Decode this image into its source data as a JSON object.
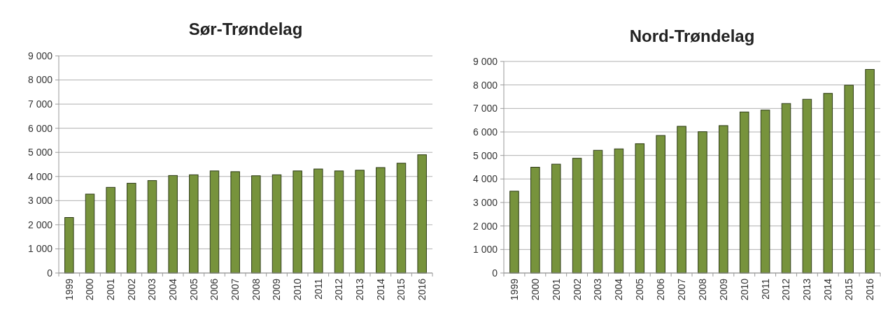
{
  "chart_data": [
    {
      "type": "bar",
      "title": "Sør-Trøndelag",
      "categories": [
        "1999",
        "2000",
        "2001",
        "2002",
        "2003",
        "2004",
        "2005",
        "2006",
        "2007",
        "2008",
        "2009",
        "2010",
        "2011",
        "2012",
        "2013",
        "2014",
        "2015",
        "2016"
      ],
      "values": [
        2300,
        3270,
        3550,
        3720,
        3830,
        4040,
        4070,
        4230,
        4200,
        4030,
        4070,
        4230,
        4310,
        4230,
        4260,
        4370,
        4550,
        4900
      ],
      "color": "#77933c",
      "ylim": [
        0,
        9000
      ],
      "yticks": [
        0,
        {
          "value": 1000,
          "label": "1 000"
        },
        {
          "value": 2000,
          "label": "2 000"
        },
        {
          "value": 3000,
          "label": "3 000"
        },
        {
          "value": 4000,
          "label": "4 000"
        },
        {
          "value": 5000,
          "label": "5 000"
        },
        {
          "value": 6000,
          "label": "6 000"
        },
        {
          "value": 7000,
          "label": "7 000"
        },
        {
          "value": 8000,
          "label": "8 000"
        },
        {
          "value": 9000,
          "label": "9 000"
        }
      ],
      "grid": "y"
    },
    {
      "type": "bar",
      "title": "Nord-Trøndelag",
      "categories": [
        "1999",
        "2000",
        "2001",
        "2002",
        "2003",
        "2004",
        "2005",
        "2006",
        "2007",
        "2008",
        "2009",
        "2010",
        "2011",
        "2012",
        "2013",
        "2014",
        "2015",
        "2016"
      ],
      "values": [
        3480,
        4500,
        4630,
        4880,
        5220,
        5280,
        5500,
        5850,
        6240,
        6010,
        6270,
        6850,
        6930,
        7210,
        7390,
        7640,
        7990,
        8660
      ],
      "color": "#77933c",
      "ylim": [
        0,
        9000
      ],
      "yticks": [
        0,
        {
          "value": 1000,
          "label": "1 000"
        },
        {
          "value": 2000,
          "label": "2 000"
        },
        {
          "value": 3000,
          "label": "3 000"
        },
        {
          "value": 4000,
          "label": "4 000"
        },
        {
          "value": 5000,
          "label": "5 000"
        },
        {
          "value": 6000,
          "label": "6 000"
        },
        {
          "value": 7000,
          "label": "7 000"
        },
        {
          "value": 8000,
          "label": "8 000"
        },
        {
          "value": 9000,
          "label": "9 000"
        }
      ],
      "grid": "y"
    }
  ]
}
